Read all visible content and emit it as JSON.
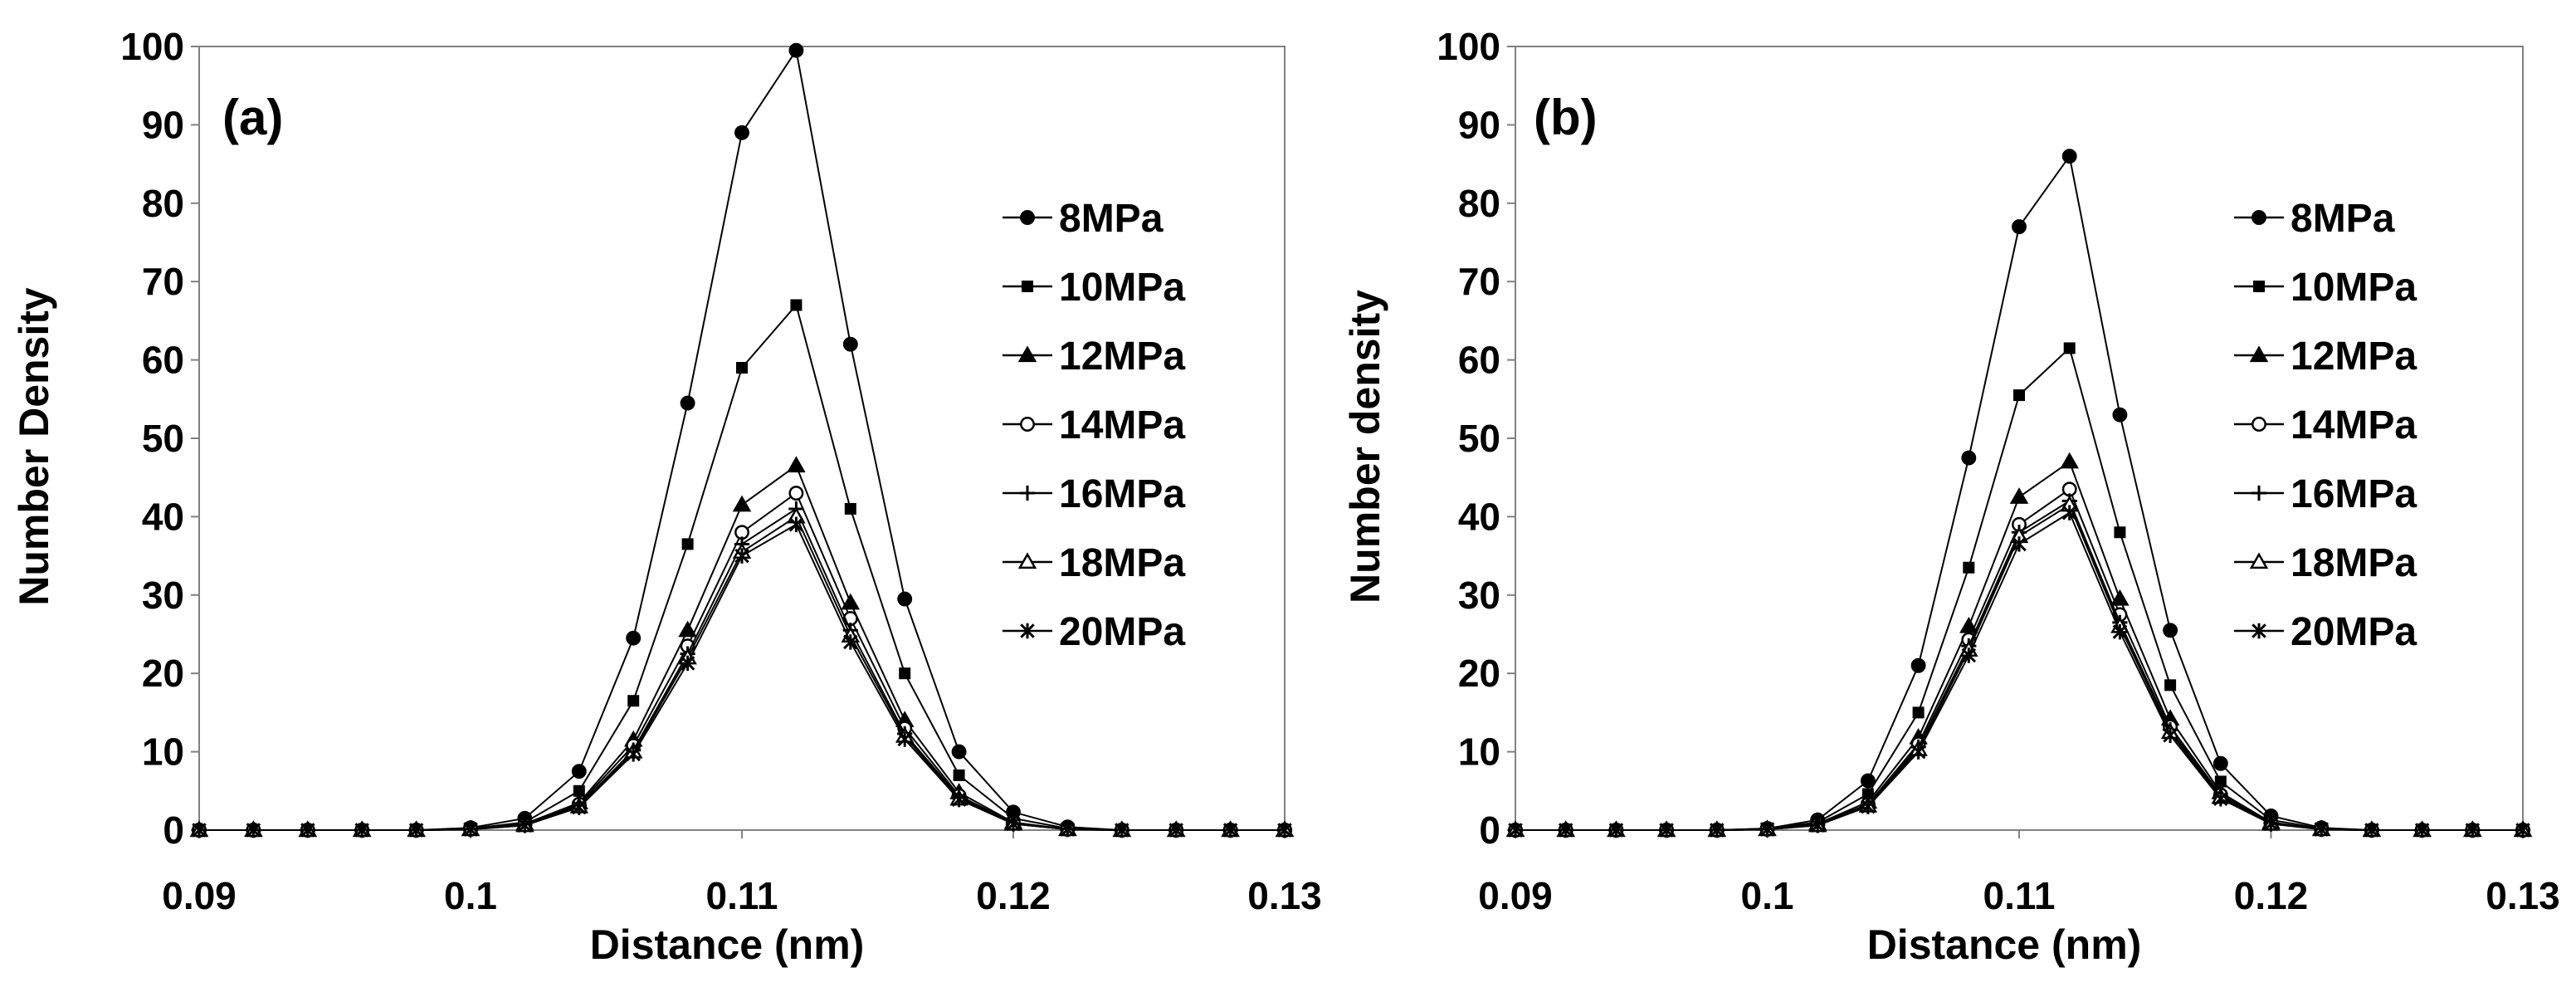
{
  "chart_data": [
    {
      "type": "line",
      "panel_label": "(a)",
      "xlabel": "Distance (nm)",
      "ylabel": "Number Density",
      "xlim": [
        0.09,
        0.13
      ],
      "ylim": [
        0,
        100
      ],
      "xticks": [
        "0.09",
        "0.1",
        "0.11",
        "0.12",
        "0.13"
      ],
      "yticks": [
        "0",
        "10",
        "20",
        "30",
        "40",
        "50",
        "60",
        "70",
        "80",
        "90",
        "100"
      ],
      "grid": false,
      "legend_position": "right",
      "x": [
        0.09,
        0.092,
        0.094,
        0.096,
        0.098,
        0.1,
        0.102,
        0.104,
        0.106,
        0.108,
        0.11,
        0.112,
        0.114,
        0.116,
        0.118,
        0.12,
        0.122,
        0.124,
        0.126,
        0.128,
        0.13
      ],
      "series": [
        {
          "name": "8MPa",
          "marker": "circle-filled",
          "values": [
            0,
            0,
            0,
            0,
            0,
            0.3,
            1.5,
            7.5,
            24.5,
            54.5,
            89,
            99.5,
            62,
            29.5,
            10,
            2.3,
            0.4,
            0,
            0,
            0,
            0
          ]
        },
        {
          "name": "10MPa",
          "marker": "square-filled",
          "values": [
            0,
            0,
            0,
            0,
            0,
            0.2,
            1.0,
            5.0,
            16.5,
            36.5,
            59,
            67,
            41,
            20,
            7,
            1.5,
            0.2,
            0,
            0,
            0,
            0
          ]
        },
        {
          "name": "12MPa",
          "marker": "triangle-filled",
          "values": [
            0,
            0,
            0,
            0,
            0,
            0.1,
            0.8,
            3.5,
            11.5,
            25.5,
            41.5,
            46.5,
            29,
            14,
            4.8,
            1.0,
            0.1,
            0,
            0,
            0,
            0
          ]
        },
        {
          "name": "14MPa",
          "marker": "circle-open",
          "values": [
            0,
            0,
            0,
            0,
            0,
            0.1,
            0.7,
            3.3,
            10.8,
            23.5,
            38,
            43,
            27,
            13,
            4.4,
            0.9,
            0.1,
            0,
            0,
            0,
            0
          ]
        },
        {
          "name": "16MPa",
          "marker": "plus",
          "values": [
            0,
            0,
            0,
            0,
            0,
            0.1,
            0.7,
            3.1,
            10.2,
            22.5,
            36.5,
            41,
            25.5,
            12.3,
            4.2,
            0.8,
            0.1,
            0,
            0,
            0,
            0
          ]
        },
        {
          "name": "18MPa",
          "marker": "triangle-open",
          "values": [
            0,
            0,
            0,
            0,
            0,
            0.1,
            0.6,
            3.0,
            10.0,
            22,
            35.5,
            40,
            24.8,
            12,
            4.0,
            0.8,
            0.1,
            0,
            0,
            0,
            0
          ]
        },
        {
          "name": "20MPa",
          "marker": "star",
          "values": [
            0,
            0,
            0,
            0,
            0,
            0.1,
            0.6,
            2.9,
            9.7,
            21.3,
            35,
            39,
            24,
            11.6,
            3.9,
            0.8,
            0.1,
            0,
            0,
            0,
            0
          ]
        }
      ]
    },
    {
      "type": "line",
      "panel_label": "(b)",
      "xlabel": "Distance (nm)",
      "ylabel": "Number density",
      "xlim": [
        0.09,
        0.13
      ],
      "ylim": [
        0,
        100
      ],
      "xticks": [
        "0.09",
        "0.1",
        "0.11",
        "0.12",
        "0.13"
      ],
      "yticks": [
        "0",
        "10",
        "20",
        "30",
        "40",
        "50",
        "60",
        "70",
        "80",
        "90",
        "100"
      ],
      "grid": false,
      "legend_position": "right",
      "x": [
        0.09,
        0.092,
        0.094,
        0.096,
        0.098,
        0.1,
        0.102,
        0.104,
        0.106,
        0.108,
        0.11,
        0.112,
        0.114,
        0.116,
        0.118,
        0.12,
        0.122,
        0.124,
        0.126,
        0.128,
        0.13
      ],
      "series": [
        {
          "name": "8MPa",
          "marker": "circle-filled",
          "values": [
            0,
            0,
            0,
            0,
            0,
            0.2,
            1.3,
            6.3,
            21,
            47.5,
            77,
            86,
            53,
            25.5,
            8.5,
            1.8,
            0.3,
            0,
            0,
            0,
            0
          ]
        },
        {
          "name": "10MPa",
          "marker": "square-filled",
          "values": [
            0,
            0,
            0,
            0,
            0,
            0.2,
            1.0,
            4.6,
            15,
            33.5,
            55.5,
            61.5,
            38,
            18.5,
            6.2,
            1.3,
            0.2,
            0,
            0,
            0,
            0
          ]
        },
        {
          "name": "12MPa",
          "marker": "triangle-filled",
          "values": [
            0,
            0,
            0,
            0,
            0,
            0.1,
            0.8,
            3.6,
            11.8,
            26,
            42.5,
            47,
            29.5,
            14.2,
            4.8,
            1.0,
            0.1,
            0,
            0,
            0,
            0
          ]
        },
        {
          "name": "14MPa",
          "marker": "circle-open",
          "values": [
            0,
            0,
            0,
            0,
            0,
            0.1,
            0.7,
            3.3,
            11,
            24.3,
            39,
            43.5,
            27.5,
            13.2,
            4.5,
            0.9,
            0.1,
            0,
            0,
            0,
            0
          ]
        },
        {
          "name": "16MPa",
          "marker": "plus",
          "values": [
            0,
            0,
            0,
            0,
            0,
            0.1,
            0.7,
            3.2,
            10.6,
            23.5,
            38,
            42,
            26.5,
            12.8,
            4.3,
            0.9,
            0.1,
            0,
            0,
            0,
            0
          ]
        },
        {
          "name": "18MPa",
          "marker": "triangle-open",
          "values": [
            0,
            0,
            0,
            0,
            0,
            0.1,
            0.6,
            3.1,
            10.3,
            23,
            37.5,
            41.5,
            26,
            12.5,
            4.2,
            0.8,
            0.1,
            0,
            0,
            0,
            0
          ]
        },
        {
          "name": "20MPa",
          "marker": "star",
          "values": [
            0,
            0,
            0,
            0,
            0,
            0.1,
            0.6,
            3.0,
            10,
            22.3,
            36.5,
            40.5,
            25.3,
            12.1,
            4.0,
            0.8,
            0.1,
            0,
            0,
            0,
            0
          ]
        }
      ]
    }
  ]
}
